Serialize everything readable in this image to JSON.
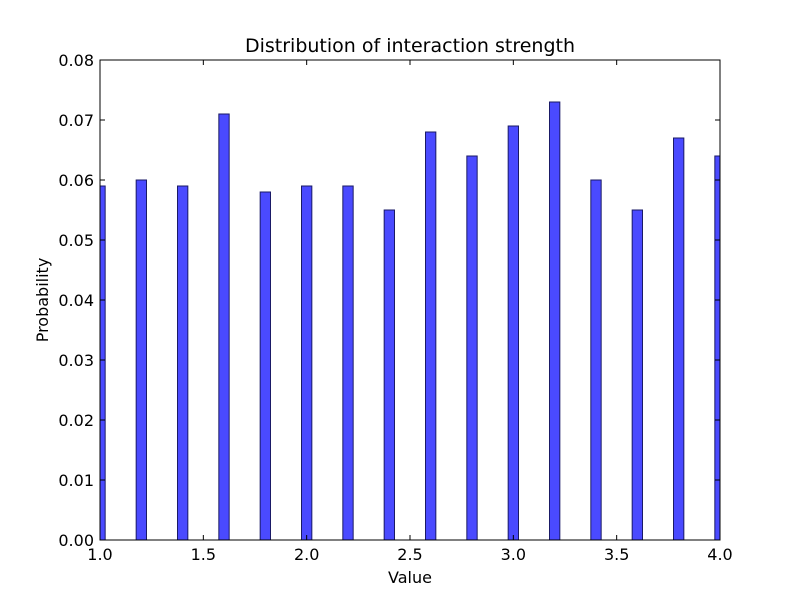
{
  "chart_data": {
    "type": "bar",
    "title": "Distribution of interaction strength",
    "xlabel": "Value",
    "ylabel": "Probability",
    "xlim": [
      1.0,
      4.0
    ],
    "ylim": [
      0.0,
      0.08
    ],
    "x_ticks": [
      "1.0",
      "1.5",
      "2.0",
      "2.5",
      "3.0",
      "3.5",
      "4.0"
    ],
    "y_ticks": [
      "0.00",
      "0.01",
      "0.02",
      "0.03",
      "0.04",
      "0.05",
      "0.06",
      "0.07",
      "0.08"
    ],
    "bar_color": "#4a4aff",
    "bar_edge_color": "#1a1a66",
    "grid": false,
    "bar_width": 0.05,
    "bars": [
      {
        "x": 1.0,
        "value": 0.059
      },
      {
        "x": 1.2,
        "value": 0.06
      },
      {
        "x": 1.4,
        "value": 0.059
      },
      {
        "x": 1.6,
        "value": 0.071
      },
      {
        "x": 1.8,
        "value": 0.058
      },
      {
        "x": 2.0,
        "value": 0.059
      },
      {
        "x": 2.2,
        "value": 0.059
      },
      {
        "x": 2.4,
        "value": 0.055
      },
      {
        "x": 2.6,
        "value": 0.068
      },
      {
        "x": 2.8,
        "value": 0.064
      },
      {
        "x": 3.0,
        "value": 0.069
      },
      {
        "x": 3.2,
        "value": 0.073
      },
      {
        "x": 3.4,
        "value": 0.06
      },
      {
        "x": 3.6,
        "value": 0.055
      },
      {
        "x": 3.8,
        "value": 0.067
      },
      {
        "x": 4.0,
        "value": 0.064
      }
    ]
  }
}
